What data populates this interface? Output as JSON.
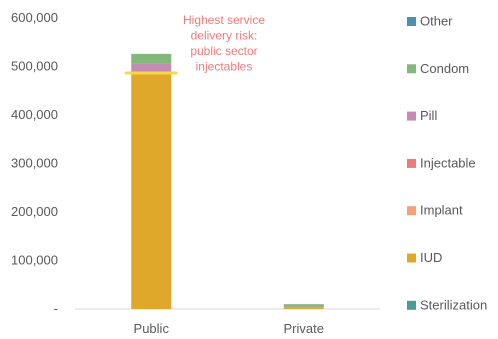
{
  "chart_data": {
    "type": "bar",
    "stacked": true,
    "categories": [
      "Public",
      "Private"
    ],
    "series": [
      {
        "name": "Sterilization",
        "color": "#4e9a94",
        "values": [
          0,
          0
        ]
      },
      {
        "name": "IUD",
        "color": "#e0a82a",
        "values": [
          485000,
          4000
        ]
      },
      {
        "name": "Implant",
        "color": "#f4a078",
        "values": [
          0,
          0
        ]
      },
      {
        "name": "Injectable",
        "color": "#ee7a7a",
        "values": [
          3000,
          0
        ]
      },
      {
        "name": "Pill",
        "color": "#c48bb3",
        "values": [
          19000,
          1000
        ]
      },
      {
        "name": "Condom",
        "color": "#84b77c",
        "values": [
          19000,
          5000
        ]
      },
      {
        "name": "Other",
        "color": "#4f8fae",
        "values": [
          0,
          0
        ]
      }
    ],
    "yticks": [
      "-",
      "100,000",
      "200,000",
      "300,000",
      "400,000",
      "500,000",
      "600,000"
    ],
    "ylim": [
      0,
      600000
    ],
    "grid": false,
    "legend_position": "right",
    "annotation": {
      "lines": [
        "Highest service",
        "delivery risk:",
        "public sector",
        "injectables"
      ],
      "color": "#f07a7a",
      "highlight_color": "#f5d94a",
      "category": "Public",
      "series": "Injectable"
    }
  }
}
